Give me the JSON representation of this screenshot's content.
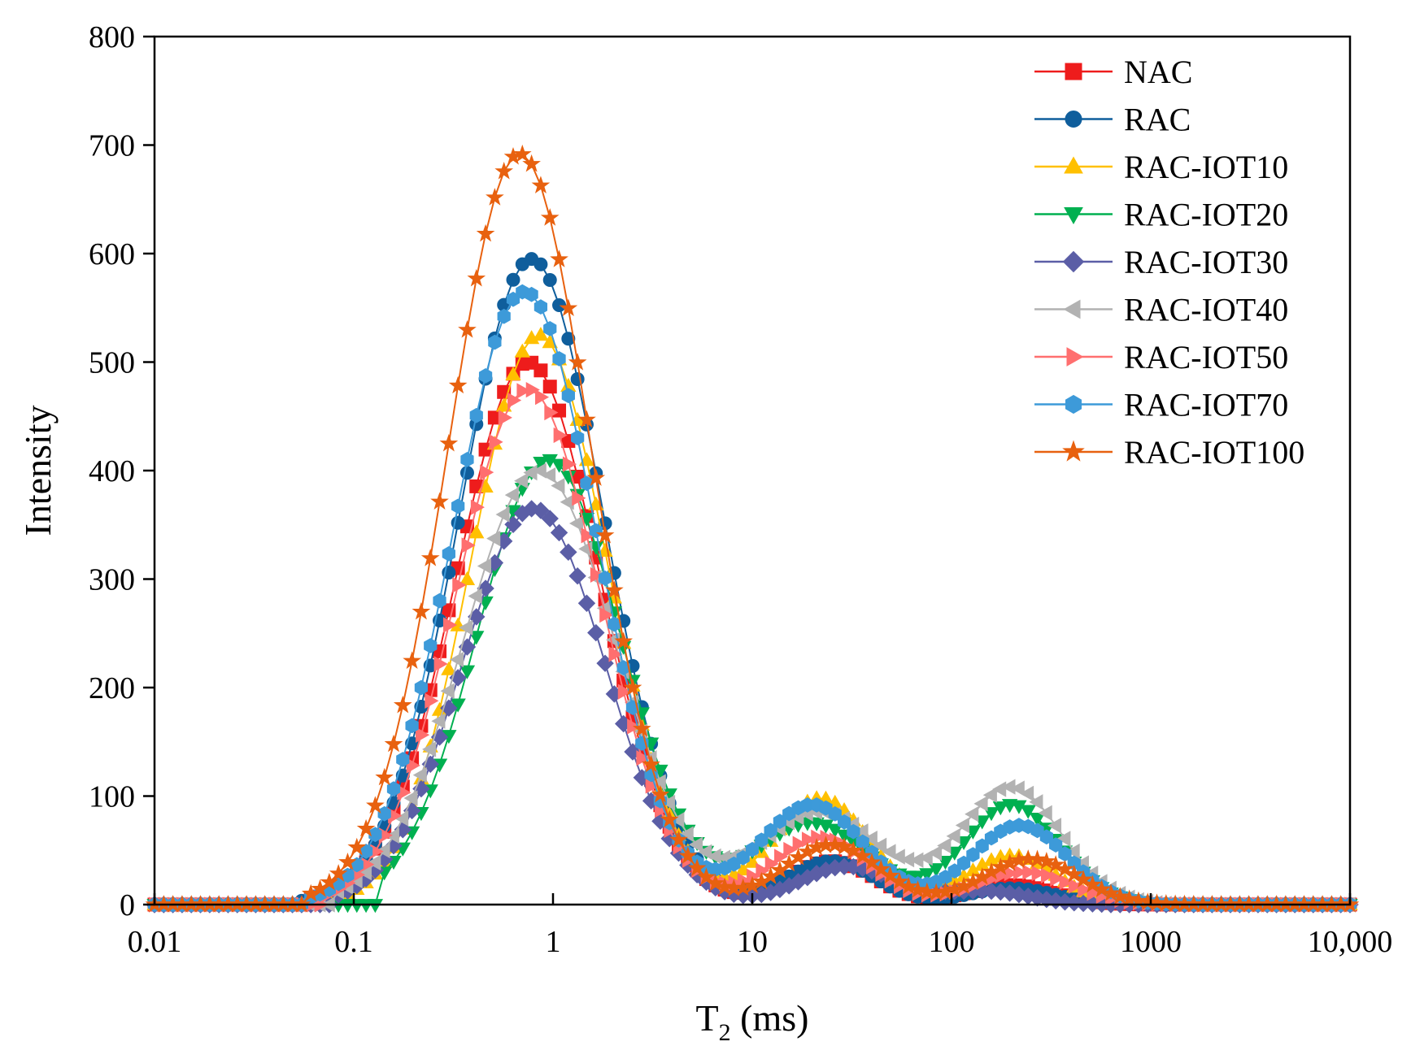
{
  "chart_data": {
    "type": "line",
    "xscale": "log",
    "xlabel": "T",
    "xlabel_sub": "2",
    "xlabel_unit": " (ms)",
    "ylabel": "Intensity",
    "xlim": [
      0.01,
      10000
    ],
    "ylim": [
      0,
      800
    ],
    "xticks": [
      0.01,
      0.1,
      1,
      10,
      100,
      1000,
      10000
    ],
    "xtick_labels": [
      "0.01",
      "0.1",
      "1",
      "10",
      "100",
      "1000",
      "10,000"
    ],
    "yticks": [
      0,
      100,
      200,
      300,
      400,
      500,
      600,
      700,
      800
    ],
    "ytick_labels": [
      "0",
      "100",
      "200",
      "300",
      "400",
      "500",
      "600",
      "700",
      "800"
    ],
    "legend_position": "top-right",
    "series": [
      {
        "name": "NAC",
        "color": "#ee1c1c",
        "marker": "square",
        "peaks": [
          {
            "center": 0.75,
            "height": 500,
            "sigma": 0.36
          },
          {
            "center": 25,
            "height": 40,
            "sigma": 0.22
          },
          {
            "center": 200,
            "height": 18,
            "sigma": 0.22
          }
        ],
        "x_start": 0.055,
        "x_end": 1400
      },
      {
        "name": "RAC",
        "color": "#0f5e9c",
        "marker": "circle",
        "peaks": [
          {
            "center": 0.78,
            "height": 595,
            "sigma": 0.36
          },
          {
            "center": 25,
            "height": 40,
            "sigma": 0.22
          },
          {
            "center": 200,
            "height": 15,
            "sigma": 0.22
          }
        ],
        "x_start": 0.05,
        "x_end": 1400
      },
      {
        "name": "RAC-IOT10",
        "color": "#ffc000",
        "marker": "triangle-up",
        "peaks": [
          {
            "center": 0.85,
            "height": 525,
            "sigma": 0.34
          },
          {
            "center": 22,
            "height": 98,
            "sigma": 0.24
          },
          {
            "center": 200,
            "height": 45,
            "sigma": 0.22
          }
        ],
        "x_start": 0.06,
        "x_end": 2000
      },
      {
        "name": "RAC-IOT20",
        "color": "#00b050",
        "marker": "triangle-down",
        "peaks": [
          {
            "center": 0.95,
            "height": 410,
            "sigma": 0.36
          },
          {
            "center": 20,
            "height": 75,
            "sigma": 0.28
          },
          {
            "center": 200,
            "height": 92,
            "sigma": 0.24
          }
        ],
        "x_start": 0.13,
        "x_end": 2000
      },
      {
        "name": "RAC-IOT30",
        "color": "#5b5ea6",
        "marker": "diamond",
        "peaks": [
          {
            "center": 0.8,
            "height": 365,
            "sigma": 0.36
          },
          {
            "center": 30,
            "height": 35,
            "sigma": 0.24
          },
          {
            "center": 150,
            "height": 12,
            "sigma": 0.22
          }
        ],
        "x_start": 0.08,
        "x_end": 600
      },
      {
        "name": "RAC-IOT40",
        "color": "#b2b2b2",
        "marker": "triangle-left",
        "peaks": [
          {
            "center": 0.85,
            "height": 400,
            "sigma": 0.38
          },
          {
            "center": 22,
            "height": 85,
            "sigma": 0.3
          },
          {
            "center": 200,
            "height": 108,
            "sigma": 0.25
          }
        ],
        "x_start": 0.08,
        "x_end": 2000
      },
      {
        "name": "RAC-IOT50",
        "color": "#ff6f6f",
        "marker": "triangle-right",
        "peaks": [
          {
            "center": 0.75,
            "height": 475,
            "sigma": 0.36
          },
          {
            "center": 22,
            "height": 62,
            "sigma": 0.24
          },
          {
            "center": 230,
            "height": 30,
            "sigma": 0.24
          }
        ],
        "x_start": 0.07,
        "x_end": 3000
      },
      {
        "name": "RAC-IOT70",
        "color": "#3d9ad9",
        "marker": "hexagon",
        "peaks": [
          {
            "center": 0.72,
            "height": 565,
            "sigma": 0.36
          },
          {
            "center": 20,
            "height": 92,
            "sigma": 0.26
          },
          {
            "center": 220,
            "height": 73,
            "sigma": 0.24
          }
        ],
        "x_start": 0.06,
        "x_end": 3000
      },
      {
        "name": "RAC-IOT100",
        "color": "#e8610f",
        "marker": "star",
        "peaks": [
          {
            "center": 0.68,
            "height": 692,
            "sigma": 0.36
          },
          {
            "center": 25,
            "height": 55,
            "sigma": 0.24
          },
          {
            "center": 250,
            "height": 42,
            "sigma": 0.24
          }
        ],
        "x_start": 0.06,
        "x_end": 8000
      }
    ]
  }
}
